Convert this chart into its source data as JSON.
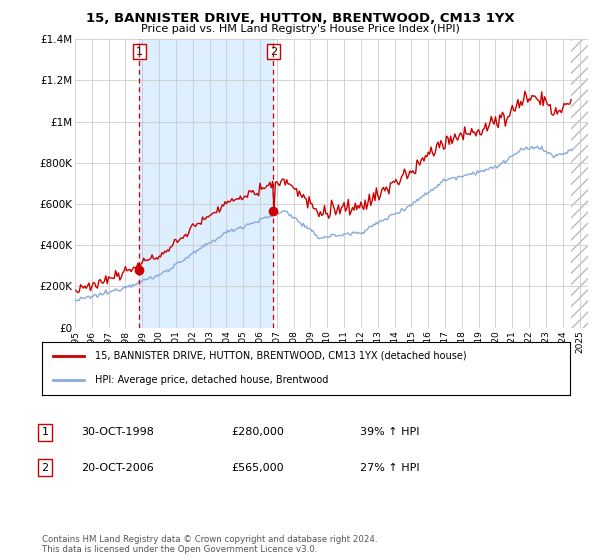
{
  "title": "15, BANNISTER DRIVE, HUTTON, BRENTWOOD, CM13 1YX",
  "subtitle": "Price paid vs. HM Land Registry's House Price Index (HPI)",
  "ylim": [
    0,
    1400000
  ],
  "yticks": [
    0,
    200000,
    400000,
    600000,
    800000,
    1000000,
    1200000,
    1400000
  ],
  "ytick_labels": [
    "£0",
    "£200K",
    "£400K",
    "£600K",
    "£800K",
    "£1M",
    "£1.2M",
    "£1.4M"
  ],
  "xlim_start": 1995,
  "xlim_end": 2025.5,
  "sale1_date": 1998.83,
  "sale1_price": 280000,
  "sale2_date": 2006.8,
  "sale2_price": 565000,
  "property_color": "#cc0000",
  "hpi_color": "#88aadd",
  "shade_color": "#ddeeff",
  "vline_color": "#cc0000",
  "hatch_color": "#bbbbbb",
  "legend1": "15, BANNISTER DRIVE, HUTTON, BRENTWOOD, CM13 1YX (detached house)",
  "legend2": "HPI: Average price, detached house, Brentwood",
  "table_row1_num": "1",
  "table_row1_date": "30-OCT-1998",
  "table_row1_price": "£280,000",
  "table_row1_hpi": "39% ↑ HPI",
  "table_row2_num": "2",
  "table_row2_date": "20-OCT-2006",
  "table_row2_price": "£565,000",
  "table_row2_hpi": "27% ↑ HPI",
  "footer": "Contains HM Land Registry data © Crown copyright and database right 2024.\nThis data is licensed under the Open Government Licence v3.0.",
  "background_color": "#ffffff",
  "grid_color": "#cccccc",
  "data_end_year": 2024.5
}
